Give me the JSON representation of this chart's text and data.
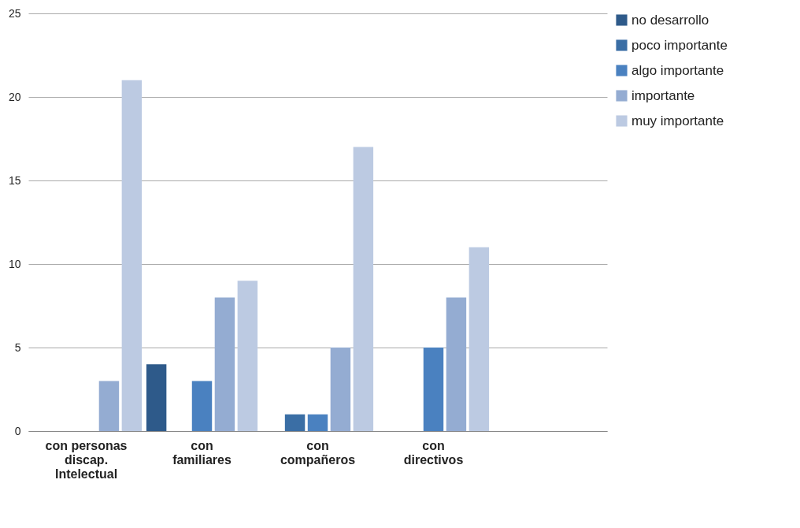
{
  "chart_data": {
    "type": "bar",
    "categories": [
      "con personas discap. Intelectual",
      "con familiares",
      "con compañeros",
      "con directivos",
      null
    ],
    "series": [
      {
        "name": "no desarrollo",
        "color": "#2e5a8a",
        "values": [
          null,
          4,
          null,
          null,
          null
        ]
      },
      {
        "name": "poco importante",
        "color": "#3a6ea5",
        "values": [
          null,
          null,
          1,
          null,
          null
        ]
      },
      {
        "name": "algo importante",
        "color": "#4a81c0",
        "values": [
          null,
          3,
          1,
          5,
          null
        ]
      },
      {
        "name": "importante",
        "color": "#94acd2",
        "values": [
          3,
          8,
          5,
          8,
          null
        ]
      },
      {
        "name": "muy importante",
        "color": "#bccae2",
        "values": [
          21,
          9,
          17,
          11,
          null
        ]
      }
    ],
    "ylim": [
      0,
      25
    ],
    "yticks": [
      0,
      5,
      10,
      15,
      20,
      25
    ],
    "grid": "y",
    "legend": "right"
  }
}
